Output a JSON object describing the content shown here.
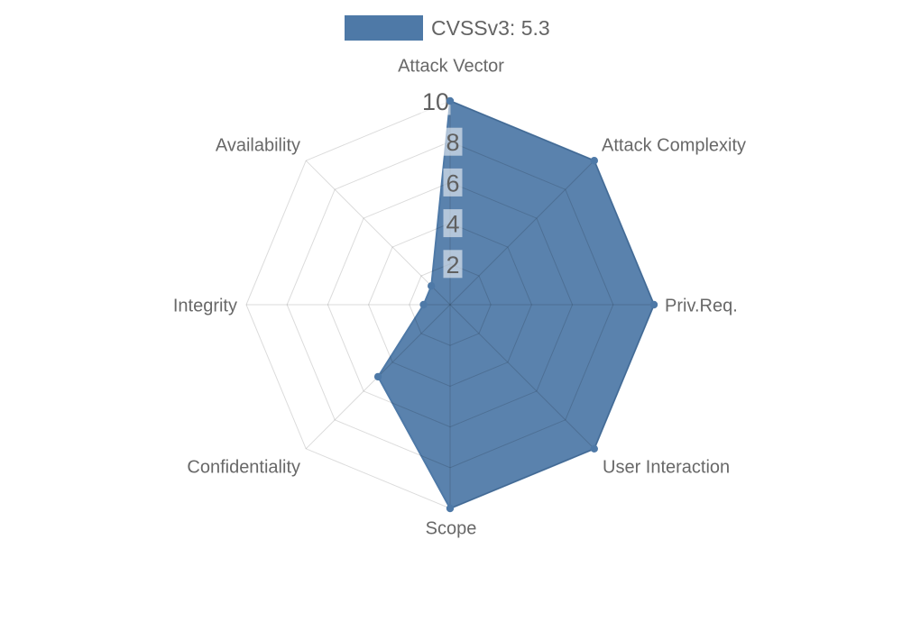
{
  "background_color": "#ffffff",
  "legend": {
    "label": "CVSSv3: 5.3",
    "swatch_color": "#4e79a7"
  },
  "chart_data": {
    "type": "radar",
    "title": "",
    "legend_position": "top-center",
    "axes": [
      "Attack Vector",
      "Attack Complexity",
      "Priv.Req.",
      "User Interaction",
      "Scope",
      "Confidentiality",
      "Integrity",
      "Availability"
    ],
    "series": [
      {
        "name": "CVSSv3: 5.3",
        "values": [
          10,
          10,
          10,
          10,
          10,
          5,
          1.3,
          1.3
        ],
        "color": "#4e79a7",
        "fill_opacity": 0.93
      }
    ],
    "r_max": 10,
    "radial_ticks": [
      "2",
      "4",
      "6",
      "8",
      "10"
    ],
    "grid": "on",
    "grid_shape": "polygon",
    "grid_color": "rgba(0,0,0,0.14)",
    "tick_box_color": "rgba(255,255,255,0.55)",
    "tick_text_color": "#606060",
    "axis_label_color": "#686868",
    "point_color": "#4e79a7"
  }
}
